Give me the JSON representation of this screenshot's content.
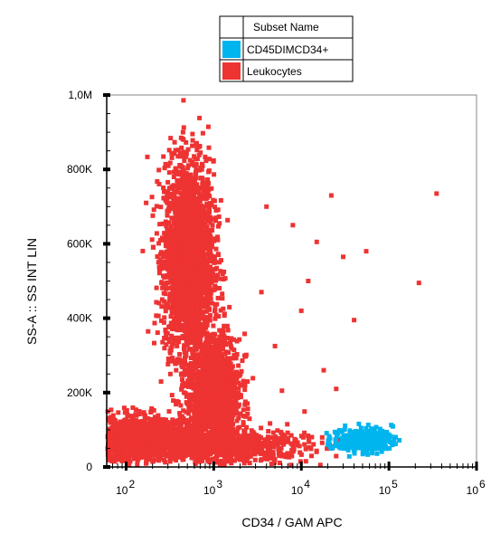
{
  "chart_data": {
    "type": "scatter",
    "xlabel": "CD34  / GAM APC",
    "ylabel": "SS-A :: SS INT LIN",
    "x_scale": "log",
    "xlim": [
      60,
      1000000
    ],
    "ylim": [
      0,
      1000000
    ],
    "x_ticks": [
      {
        "base": "10",
        "exp": "2",
        "value": 100
      },
      {
        "base": "10",
        "exp": "3",
        "value": 1000
      },
      {
        "base": "10",
        "exp": "4",
        "value": 10000
      },
      {
        "base": "10",
        "exp": "5",
        "value": 100000
      },
      {
        "base": "10",
        "exp": "6",
        "value": 1000000
      }
    ],
    "y_ticks": [
      {
        "label": "0",
        "value": 0
      },
      {
        "label": "200K",
        "value": 200000
      },
      {
        "label": "400K",
        "value": 400000
      },
      {
        "label": "600K",
        "value": 600000
      },
      {
        "label": "800K",
        "value": 800000
      },
      {
        "label": "1,0M",
        "value": 1000000
      }
    ],
    "legend": {
      "title": "Subset Name",
      "position": "top-center"
    },
    "series": [
      {
        "name": "CD45DIMCD34+",
        "color": "#00b4ee",
        "populations": [
          {
            "x_center": 50000,
            "x_log_spread": 0.17,
            "y_center": 72000,
            "y_spread": 17000,
            "count": 260
          }
        ]
      },
      {
        "name": "Leukocytes",
        "color": "#ee3333",
        "populations": [
          {
            "x_center": 520,
            "x_log_spread": 0.14,
            "y_center": 560000,
            "y_spread": 130000,
            "count": 2600
          },
          {
            "x_center": 1000,
            "x_log_spread": 0.15,
            "y_center": 190000,
            "y_spread": 80000,
            "count": 1500
          },
          {
            "x_center": 150,
            "x_log_spread": 0.35,
            "y_center": 75000,
            "y_spread": 30000,
            "count": 1300
          },
          {
            "x_center": 1500,
            "x_log_spread": 0.45,
            "y_center": 55000,
            "y_spread": 22000,
            "count": 700
          }
        ],
        "outliers": [
          {
            "x": 350000,
            "y": 735000
          },
          {
            "x": 220000,
            "y": 495000
          },
          {
            "x": 22000,
            "y": 730000
          },
          {
            "x": 15000,
            "y": 605000
          },
          {
            "x": 30000,
            "y": 565000
          },
          {
            "x": 55000,
            "y": 580000
          },
          {
            "x": 10000,
            "y": 420000
          },
          {
            "x": 40000,
            "y": 395000
          },
          {
            "x": 5000,
            "y": 325000
          },
          {
            "x": 12000,
            "y": 500000
          },
          {
            "x": 8000,
            "y": 650000
          },
          {
            "x": 18000,
            "y": 260000
          },
          {
            "x": 6000,
            "y": 205000
          },
          {
            "x": 3500,
            "y": 470000
          },
          {
            "x": 4000,
            "y": 700000
          },
          {
            "x": 25000,
            "y": 210000
          }
        ]
      }
    ]
  }
}
